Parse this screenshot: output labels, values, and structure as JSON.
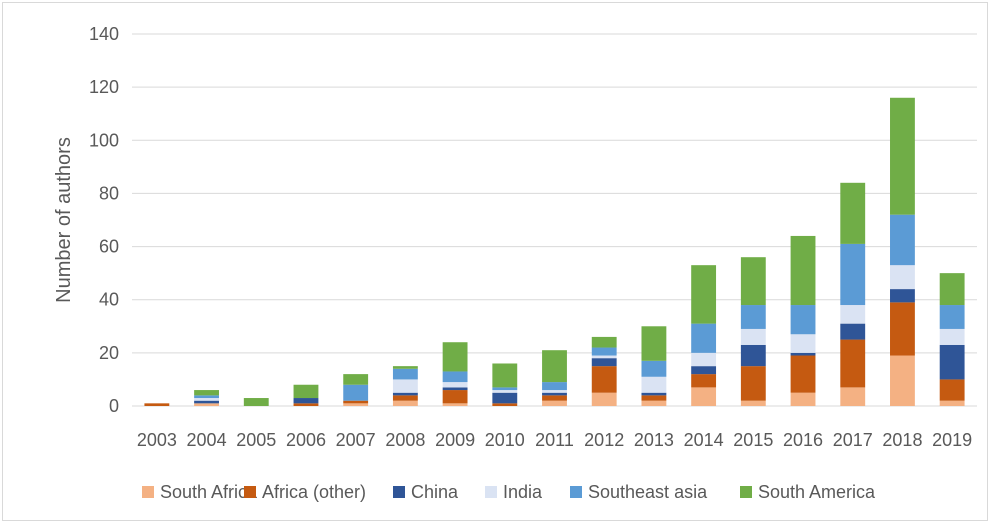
{
  "chart_data": {
    "type": "bar",
    "stacked": true,
    "title": "",
    "xlabel": "",
    "ylabel": "Number of authors",
    "ylim": [
      0,
      140
    ],
    "yticks": [
      0,
      20,
      40,
      60,
      80,
      100,
      120,
      140
    ],
    "grid": true,
    "legend_position": "bottom",
    "categories": [
      "2003",
      "2004",
      "2005",
      "2006",
      "2007",
      "2008",
      "2009",
      "2010",
      "2011",
      "2012",
      "2013",
      "2014",
      "2015",
      "2016",
      "2017",
      "2018",
      "2019"
    ],
    "series": [
      {
        "name": "South Africa",
        "color": "#f4b183",
        "values": [
          0,
          1,
          0,
          0,
          1,
          2,
          1,
          0,
          2,
          5,
          2,
          7,
          2,
          5,
          7,
          19,
          2
        ]
      },
      {
        "name": "Africa (other)",
        "color": "#c55a11",
        "values": [
          1,
          0,
          0,
          1,
          1,
          2,
          5,
          1,
          2,
          10,
          2,
          5,
          13,
          14,
          18,
          20,
          8
        ]
      },
      {
        "name": "China",
        "color": "#2f5597",
        "values": [
          0,
          1,
          0,
          2,
          0,
          1,
          1,
          4,
          1,
          3,
          1,
          3,
          8,
          1,
          6,
          5,
          13
        ]
      },
      {
        "name": "India",
        "color": "#dae3f3",
        "values": [
          0,
          1,
          0,
          0,
          0,
          5,
          2,
          1,
          1,
          1,
          6,
          5,
          6,
          7,
          7,
          9,
          6
        ]
      },
      {
        "name": "Southeast asia",
        "color": "#5b9bd5",
        "values": [
          0,
          1,
          0,
          0,
          6,
          4,
          4,
          1,
          3,
          3,
          6,
          11,
          9,
          11,
          23,
          19,
          9
        ]
      },
      {
        "name": "South America",
        "color": "#70ad47",
        "values": [
          0,
          2,
          3,
          5,
          4,
          1,
          11,
          9,
          12,
          4,
          13,
          22,
          18,
          26,
          23,
          44,
          12
        ]
      }
    ]
  }
}
